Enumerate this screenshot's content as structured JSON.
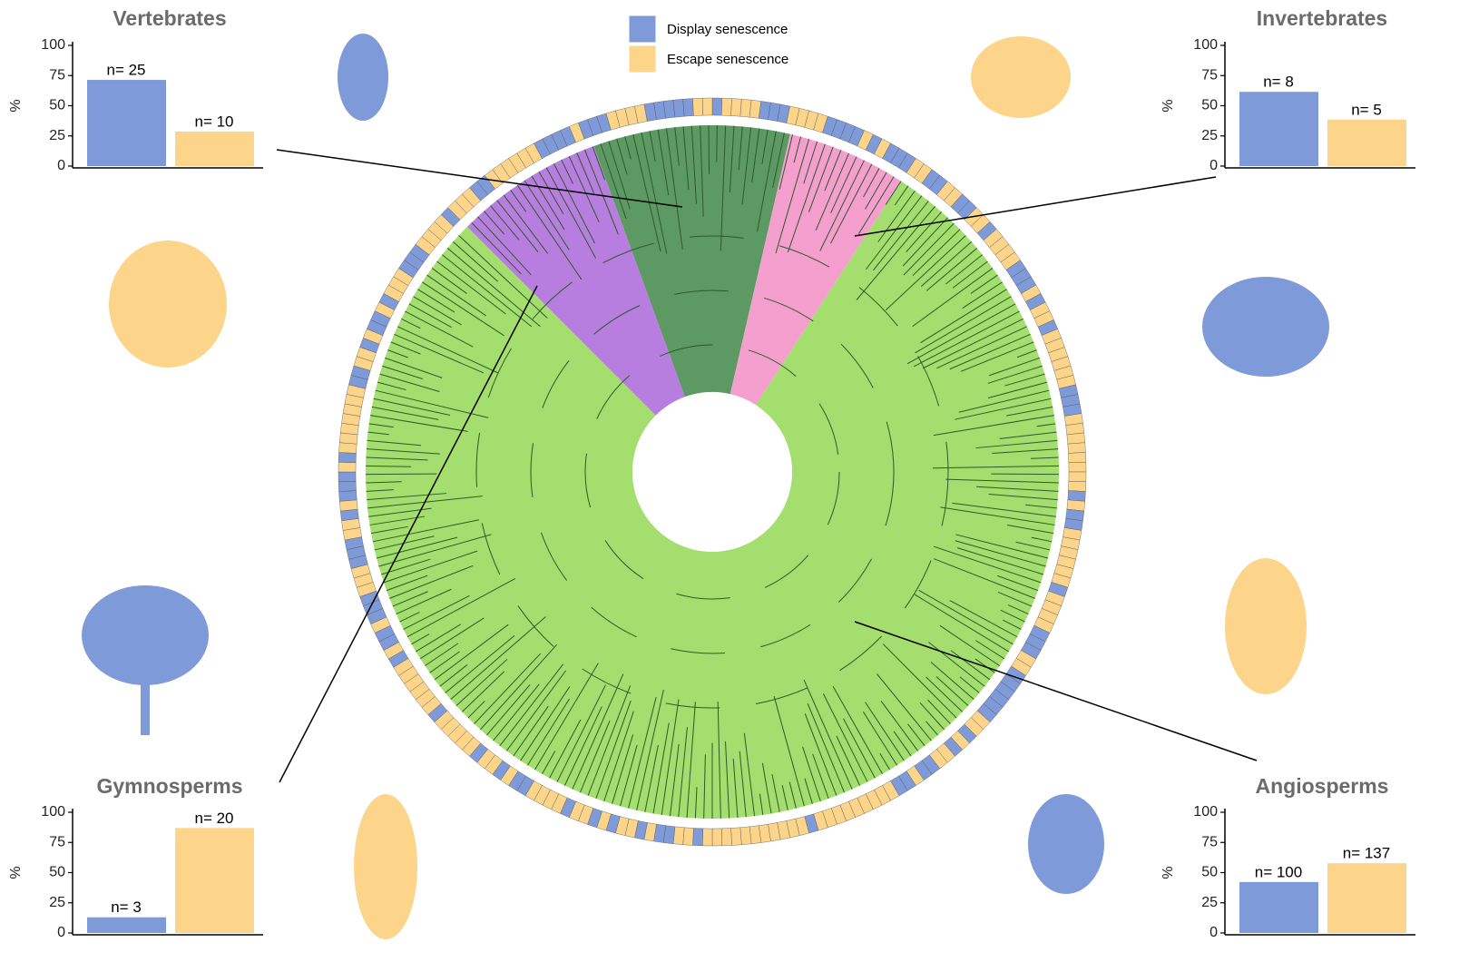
{
  "legend": {
    "items": [
      {
        "label": "Display senescence",
        "color": "#7f9ad8"
      },
      {
        "label": "Escape senescence",
        "color": "#fdd58a"
      }
    ]
  },
  "chart_data": [
    {
      "type": "bar",
      "title": "Vertebrates",
      "ylabel": "%",
      "values": [
        71.4,
        28.6
      ],
      "annotations": [
        "n= 25",
        "n= 10"
      ],
      "ylim": [
        0,
        100
      ],
      "yticks": [
        0,
        25,
        50,
        75,
        100
      ]
    },
    {
      "type": "bar",
      "title": "Invertebrates",
      "ylabel": "%",
      "values": [
        61.5,
        38.5
      ],
      "annotations": [
        "n= 8",
        "n= 5"
      ],
      "ylim": [
        0,
        100
      ],
      "yticks": [
        0,
        25,
        50,
        75,
        100
      ]
    },
    {
      "type": "bar",
      "title": "Gymnosperms",
      "ylabel": "%",
      "values": [
        13.0,
        87.0
      ],
      "annotations": [
        "n= 3",
        "n= 20"
      ],
      "ylim": [
        0,
        100
      ],
      "yticks": [
        0,
        25,
        50,
        75,
        100
      ]
    },
    {
      "type": "bar",
      "title": "Angiosperms",
      "ylabel": "%",
      "values": [
        42.2,
        57.8
      ],
      "annotations": [
        "n= 100",
        "n= 137"
      ],
      "ylim": [
        0,
        100
      ],
      "yticks": [
        0,
        25,
        50,
        75,
        100
      ]
    }
  ]
}
